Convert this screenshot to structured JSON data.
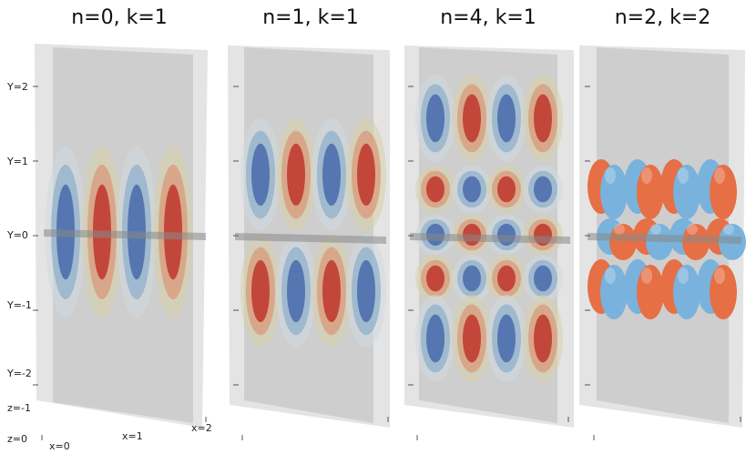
{
  "panels": [
    {
      "title": "n=0, k=1"
    },
    {
      "title": "n=1, k=1"
    },
    {
      "title": "n=4, k=1"
    },
    {
      "title": "n=2, k=2"
    }
  ],
  "axis_labels": {
    "y": [
      "Y=2",
      "Y=1",
      "Y=0",
      "Y=-1",
      "Y=-2"
    ],
    "z": [
      "z=-1",
      "z=0"
    ],
    "x": [
      "x=0",
      "x=1",
      "x=2"
    ]
  }
}
